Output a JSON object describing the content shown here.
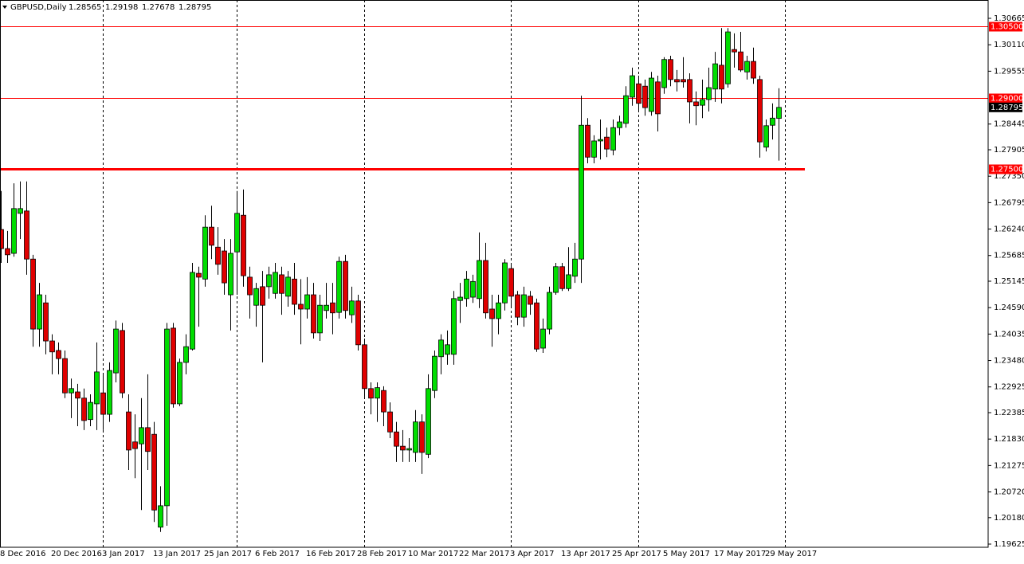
{
  "chart_data": {
    "type": "candlestick",
    "title": "GBPUSD,Daily",
    "categories": [
      "8 Dec 2016",
      null,
      null,
      null,
      null,
      null,
      null,
      null,
      "20 Dec 2016",
      null,
      null,
      null,
      null,
      null,
      null,
      null,
      "3 Jan 2017",
      null,
      null,
      null,
      null,
      null,
      null,
      null,
      "13 Jan 2017",
      null,
      null,
      null,
      null,
      null,
      null,
      null,
      "25 Jan 2017",
      null,
      null,
      null,
      null,
      null,
      null,
      null,
      "6 Feb 2017",
      null,
      null,
      null,
      null,
      null,
      null,
      null,
      "16 Feb 2017",
      null,
      null,
      null,
      null,
      null,
      null,
      null,
      "28 Feb 2017",
      null,
      null,
      null,
      null,
      null,
      null,
      null,
      "10 Mar 2017",
      null,
      null,
      null,
      null,
      null,
      null,
      null,
      "22 Mar 2017",
      null,
      null,
      null,
      null,
      null,
      null,
      null,
      "3 Apr 2017",
      null,
      null,
      null,
      null,
      null,
      null,
      null,
      "13 Apr 2017",
      null,
      null,
      null,
      null,
      null,
      null,
      null,
      "25 Apr 2017",
      null,
      null,
      null,
      null,
      null,
      null,
      null,
      "5 May 2017",
      null,
      null,
      null,
      null,
      null,
      null,
      null,
      "17 May 2017",
      null,
      null,
      null,
      null,
      null,
      null,
      null,
      "29 May 2017",
      null,
      null
    ],
    "open": [
      1.2623,
      1.2583,
      1.2573,
      1.2657,
      1.2662,
      1.2561,
      1.2414,
      1.2469,
      1.2389,
      1.2369,
      1.2352,
      1.228,
      1.2282,
      1.2269,
      1.2224,
      1.2257,
      1.228,
      1.2235,
      1.2322,
      1.2411,
      1.224,
      1.2177,
      1.2173,
      1.2207,
      1.2193,
      1.1998,
      1.2043,
      1.2416,
      1.2257,
      1.2344,
      1.2372,
      1.2531,
      1.2519,
      1.2628,
      1.2586,
      1.2578,
      1.2486,
      1.2576,
      1.2653,
      1.2523,
      1.2464,
      1.2503,
      1.2503,
      1.2489,
      1.2528,
      1.2483,
      1.2519,
      1.2466,
      1.2456,
      1.2486,
      1.2406,
      1.2453,
      1.2469,
      1.2449,
      1.2556,
      1.2444,
      1.2473,
      1.2381,
      1.2289,
      1.2269,
      1.2285,
      1.224,
      1.2198,
      1.2168,
      1.216,
      1.2155,
      1.2219,
      1.2151,
      1.2285,
      1.2356,
      1.2361,
      1.2361,
      1.2474,
      1.2478,
      1.2481,
      1.2478,
      1.2558,
      1.2456,
      1.2436,
      1.2469,
      1.2541,
      1.2486,
      1.2439,
      1.2483,
      1.2469,
      1.2374,
      1.2414,
      1.2491,
      1.2545,
      1.2499,
      1.2525,
      1.2561,
      1.2842,
      1.2775,
      1.2809,
      1.2817,
      1.279,
      1.2837,
      1.2846,
      1.2901,
      1.2929,
      1.2924,
      1.2871,
      1.2933,
      1.2921,
      1.298,
      1.2938,
      1.2938,
      1.2938,
      1.2891,
      1.2884,
      1.2896,
      1.2918,
      1.2968,
      1.2929,
      1.3001,
      1.2996,
      1.2954,
      1.2976,
      1.2938,
      1.2796,
      1.2842,
      1.28565
    ],
    "high": [
      1.2704,
      1.262,
      1.272,
      1.2724,
      1.2724,
      1.257,
      1.2511,
      1.2486,
      1.2403,
      1.2386,
      1.2369,
      1.231,
      1.2299,
      1.2289,
      1.2277,
      1.2386,
      1.2319,
      1.2344,
      1.2432,
      1.2427,
      1.2277,
      1.2235,
      1.2269,
      1.2319,
      1.2219,
      1.2084,
      1.2427,
      1.2427,
      1.2352,
      1.2403,
      1.2553,
      1.2545,
      1.2653,
      1.2673,
      1.2628,
      1.2603,
      1.2603,
      1.2704,
      1.2707,
      1.2545,
      1.2511,
      1.2536,
      1.2545,
      1.2553,
      1.2545,
      1.2536,
      1.2553,
      1.2519,
      1.2523,
      1.2511,
      1.2486,
      1.2511,
      1.2511,
      1.2566,
      1.257,
      1.2503,
      1.2486,
      1.2394,
      1.2302,
      1.2302,
      1.2294,
      1.226,
      1.2219,
      1.2202,
      1.2185,
      1.2244,
      1.2235,
      1.2319,
      1.2369,
      1.2403,
      1.2411,
      1.2494,
      1.2511,
      1.2536,
      1.2528,
      1.2617,
      1.2595,
      1.2486,
      1.2486,
      1.2561,
      1.2553,
      1.2494,
      1.2503,
      1.2494,
      1.2478,
      1.2436,
      1.2503,
      1.2553,
      1.2553,
      1.2586,
      1.2595,
      1.2904,
      1.2857,
      1.2821,
      1.2854,
      1.2837,
      1.2854,
      1.2862,
      1.2924,
      1.2963,
      1.2946,
      1.2938,
      1.2954,
      1.2946,
      1.2985,
      1.2988,
      1.2958,
      1.2985,
      1.2951,
      1.2913,
      1.2938,
      1.2963,
      1.2996,
      1.3046,
      1.3046,
      1.3035,
      1.3038,
      1.2988,
      1.3005,
      1.2946,
      1.2854,
      1.2888,
      1.29198
    ],
    "low": [
      1.2553,
      1.2553,
      1.2566,
      1.2603,
      1.2528,
      1.2377,
      1.2377,
      1.2361,
      1.2319,
      1.2319,
      1.2269,
      1.2227,
      1.221,
      1.2202,
      1.221,
      1.2202,
      1.2202,
      1.2219,
      1.2302,
      1.2269,
      1.2118,
      1.2101,
      1.2034,
      1.2118,
      1.2009,
      1.1988,
      1.2001,
      1.2249,
      1.2252,
      1.2319,
      1.2369,
      1.2419,
      1.2503,
      1.2561,
      1.2528,
      1.2486,
      1.2411,
      1.2486,
      1.2503,
      1.2436,
      1.2419,
      1.2344,
      1.2478,
      1.2478,
      1.2444,
      1.2461,
      1.2444,
      1.2382,
      1.2436,
      1.2394,
      1.2389,
      1.2436,
      1.2403,
      1.2436,
      1.2436,
      1.2427,
      1.2369,
      1.2269,
      1.2235,
      1.2219,
      1.221,
      1.2185,
      1.2135,
      1.2135,
      1.2135,
      1.2135,
      1.211,
      1.2143,
      1.2269,
      1.2319,
      1.2339,
      1.2339,
      1.2427,
      1.2461,
      1.2469,
      1.2458,
      1.2436,
      1.2377,
      1.2403,
      1.2453,
      1.2461,
      1.2422,
      1.2419,
      1.2444,
      1.2366,
      1.2364,
      1.2403,
      1.2486,
      1.2494,
      1.2494,
      1.2511,
      1.2511,
      1.2762,
      1.2762,
      1.277,
      1.2775,
      1.2779,
      1.2821,
      1.2837,
      1.2883,
      1.2871,
      1.2862,
      1.2862,
      1.2829,
      1.2908,
      1.2924,
      1.2913,
      1.2921,
      1.2846,
      1.2842,
      1.2857,
      1.2871,
      1.2891,
      1.2888,
      1.2921,
      1.2963,
      1.2954,
      1.2938,
      1.2929,
      1.2774,
      1.2787,
      1.2812,
      1.27678
    ],
    "close": [
      1.2583,
      1.257,
      1.2667,
      1.2667,
      1.2561,
      1.2414,
      1.2486,
      1.2389,
      1.2366,
      1.2352,
      1.228,
      1.2289,
      1.2269,
      1.2222,
      1.226,
      1.2324,
      1.2235,
      1.2327,
      1.2414,
      1.228,
      1.216,
      1.2163,
      1.2207,
      1.2157,
      1.2034,
      1.2043,
      1.2414,
      1.2257,
      1.2344,
      1.2377,
      1.2533,
      1.2523,
      1.2628,
      1.259,
      1.255,
      1.2511,
      1.2573,
      1.2657,
      1.2526,
      1.2486,
      1.2499,
      1.2464,
      1.2528,
      1.2533,
      1.2489,
      1.2523,
      1.2466,
      1.2456,
      1.2486,
      1.2406,
      1.2464,
      1.2464,
      1.2448,
      1.2556,
      1.2453,
      1.2473,
      1.2381,
      1.2289,
      1.2269,
      1.2291,
      1.224,
      1.2198,
      1.2168,
      1.216,
      1.2163,
      1.2219,
      1.2155,
      1.2289,
      1.2357,
      1.2391,
      1.2381,
      1.2478,
      1.2481,
      1.2519,
      1.2514,
      1.2558,
      1.2448,
      1.2436,
      1.2469,
      1.2553,
      1.2483,
      1.2439,
      1.2486,
      1.2466,
      1.2372,
      1.2414,
      1.2491,
      1.2545,
      1.2499,
      1.2528,
      1.2561,
      1.2842,
      1.2775,
      1.2809,
      1.2812,
      1.2792,
      1.2837,
      1.2849,
      1.2904,
      1.2946,
      1.2888,
      1.2879,
      1.2941,
      1.2866,
      1.298,
      1.2938,
      1.2933,
      1.2933,
      1.2891,
      1.2883,
      1.2896,
      1.2921,
      1.2971,
      1.2918,
      1.3038,
      1.2996,
      1.2958,
      1.2976,
      1.2941,
      1.2807,
      1.2841,
      1.2857,
      1.28795
    ],
    "up_color": "#00dd00",
    "down_color": "#e00000",
    "ylim": [
      1.19558,
      1.3105
    ],
    "yticks": [
      1.30665,
      {
        "value": 1.3011,
        "label": "1.30110"
      },
      1.29555,
      1.28445,
      1.27905,
      {
        "value": 1.2735,
        "label": "1.27350"
      },
      1.26795,
      {
        "value": 1.2624,
        "label": "1.26240"
      },
      1.25685,
      1.25145,
      {
        "value": 1.2459,
        "label": "1.24590"
      },
      1.24035,
      {
        "value": 1.2348,
        "label": "1.23480"
      },
      1.22925,
      1.22385,
      {
        "value": 1.2183,
        "label": "1.21830"
      },
      1.21275,
      {
        "value": 1.2072,
        "label": "1.20720"
      },
      {
        "value": 1.2018,
        "label": "1.20180"
      },
      1.19625
    ],
    "levels": [
      {
        "value": 1.305,
        "label": "1.30500"
      },
      {
        "value": 1.29,
        "label": "1.29000"
      },
      {
        "value": 1.275,
        "label": "1.27500"
      }
    ],
    "level_color": "#ff0000"
  }
}
